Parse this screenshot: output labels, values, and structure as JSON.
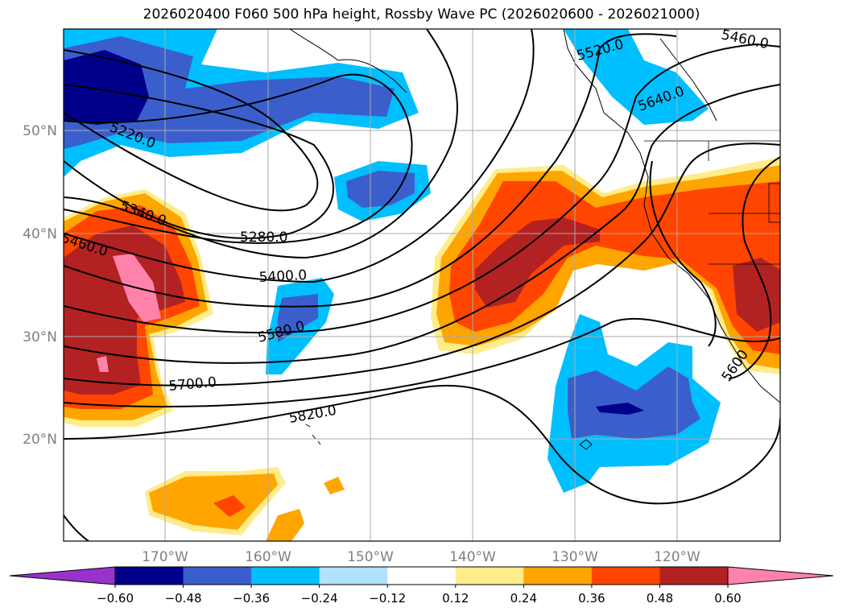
{
  "title": "2026020400 F060 500 hPa height, Rossby Wave PC (2026020600 - 2026021000)",
  "lat_ticks": [
    "50°N",
    "40°N",
    "30°N",
    "20°N"
  ],
  "lon_ticks": [
    "170°W",
    "160°W",
    "150°W",
    "140°W",
    "130°W",
    "120°W"
  ],
  "contour_labels": [
    "5220.0",
    "5340.0",
    "5460.0",
    "5280.0",
    "5400.0",
    "5580.0",
    "5700.0",
    "5820.0",
    "5520.0",
    "5640.0",
    "5460.0",
    "5600"
  ],
  "colorbar": {
    "ticks": [
      "−0.60",
      "−0.48",
      "−0.36",
      "−0.24",
      "−0.12",
      "0.12",
      "0.24",
      "0.36",
      "0.48",
      "0.60"
    ],
    "colors": [
      "#9932cc",
      "#00008b",
      "#3a5fcd",
      "#00bfff",
      "#b0e2ff",
      "#ffffff",
      "#ffec8b",
      "#ffa500",
      "#ff4500",
      "#b22222",
      "#ff82ab"
    ]
  }
}
